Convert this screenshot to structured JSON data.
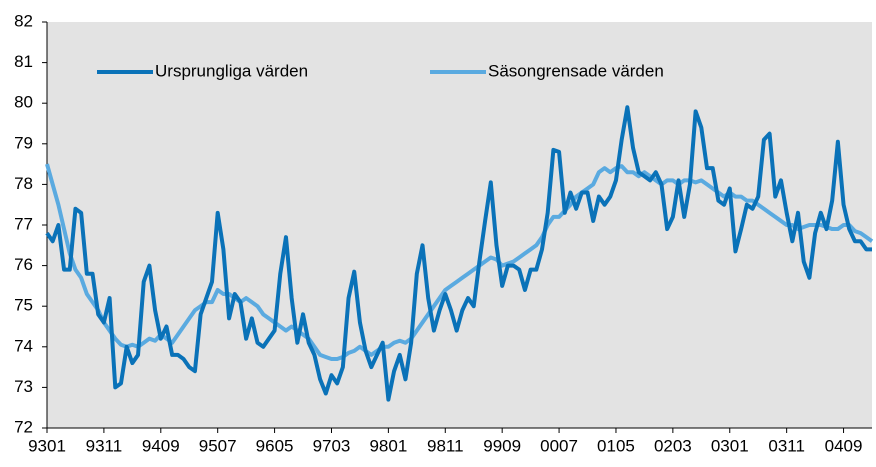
{
  "chart_data": {
    "type": "line",
    "categories": [
      "9301",
      null,
      null,
      null,
      null,
      null,
      null,
      null,
      null,
      null,
      "9311",
      null,
      null,
      null,
      null,
      null,
      null,
      null,
      null,
      null,
      "9409",
      null,
      null,
      null,
      null,
      null,
      null,
      null,
      null,
      null,
      "9507",
      null,
      null,
      null,
      null,
      null,
      null,
      null,
      null,
      null,
      "9605",
      null,
      null,
      null,
      null,
      null,
      null,
      null,
      null,
      null,
      "9703",
      null,
      null,
      null,
      null,
      null,
      null,
      null,
      null,
      null,
      "9801",
      null,
      null,
      null,
      null,
      null,
      null,
      null,
      null,
      null,
      "9811",
      null,
      null,
      null,
      null,
      null,
      null,
      null,
      null,
      null,
      "9909",
      null,
      null,
      null,
      null,
      null,
      null,
      null,
      null,
      null,
      "0007",
      null,
      null,
      null,
      null,
      null,
      null,
      null,
      null,
      null,
      "0105",
      null,
      null,
      null,
      null,
      null,
      null,
      null,
      null,
      null,
      "0203",
      null,
      null,
      null,
      null,
      null,
      null,
      null,
      null,
      null,
      "0301",
      null,
      null,
      null,
      null,
      null,
      null,
      null,
      null,
      null,
      "0311",
      null,
      null,
      null,
      null,
      null,
      null,
      null,
      null,
      null,
      "0409",
      null,
      null,
      null,
      null,
      null
    ],
    "series": [
      {
        "name": "Ursprungliga värden",
        "color": "#0a72b8",
        "values": [
          76.8,
          76.6,
          77.0,
          75.9,
          75.9,
          77.4,
          77.3,
          75.8,
          75.8,
          74.8,
          74.6,
          75.2,
          73.0,
          73.1,
          74.0,
          73.6,
          73.8,
          75.6,
          76.0,
          74.9,
          74.2,
          74.5,
          73.8,
          73.8,
          73.7,
          73.5,
          73.4,
          74.8,
          75.2,
          75.6,
          77.3,
          76.4,
          74.7,
          75.3,
          75.1,
          74.2,
          74.7,
          74.1,
          74.0,
          74.2,
          74.4,
          75.8,
          76.7,
          75.2,
          74.1,
          74.8,
          74.1,
          73.8,
          73.2,
          72.85,
          73.3,
          73.1,
          73.5,
          75.2,
          75.85,
          74.6,
          73.9,
          73.5,
          73.8,
          74.1,
          72.7,
          73.4,
          73.8,
          73.2,
          74.1,
          75.8,
          76.5,
          75.2,
          74.4,
          74.9,
          75.3,
          74.9,
          74.4,
          74.9,
          75.2,
          75.0,
          76.1,
          77.1,
          78.05,
          76.5,
          75.5,
          76.0,
          76.0,
          75.9,
          75.4,
          75.9,
          75.9,
          76.4,
          77.3,
          78.85,
          78.8,
          77.3,
          77.8,
          77.4,
          77.8,
          77.8,
          77.1,
          77.7,
          77.5,
          77.7,
          78.1,
          79.1,
          79.9,
          78.9,
          78.3,
          78.2,
          78.1,
          78.3,
          78.0,
          76.9,
          77.2,
          78.1,
          77.2,
          78.0,
          79.8,
          79.4,
          78.4,
          78.4,
          77.6,
          77.5,
          77.9,
          76.35,
          76.9,
          77.5,
          77.4,
          77.7,
          79.1,
          79.25,
          77.7,
          78.1,
          77.3,
          76.6,
          77.3,
          76.1,
          75.7,
          76.8,
          77.3,
          76.9,
          77.6,
          79.05,
          77.5,
          76.9,
          76.6,
          76.6,
          76.4,
          76.4
        ]
      },
      {
        "name": "Säsongrensade värden",
        "color": "#5aaae0",
        "values": [
          78.5,
          78.0,
          77.5,
          76.9,
          76.3,
          75.9,
          75.7,
          75.3,
          75.1,
          74.9,
          74.6,
          74.4,
          74.2,
          74.05,
          74.0,
          74.05,
          74.0,
          74.1,
          74.2,
          74.15,
          74.3,
          74.2,
          74.1,
          74.3,
          74.5,
          74.7,
          74.9,
          75.0,
          75.1,
          75.1,
          75.4,
          75.3,
          75.3,
          75.2,
          75.1,
          75.2,
          75.1,
          75.0,
          74.8,
          74.7,
          74.6,
          74.5,
          74.4,
          74.5,
          74.4,
          74.3,
          74.2,
          74.0,
          73.8,
          73.75,
          73.7,
          73.7,
          73.75,
          73.85,
          73.9,
          74.0,
          73.9,
          73.8,
          73.9,
          74.0,
          74.0,
          74.1,
          74.15,
          74.1,
          74.2,
          74.4,
          74.6,
          74.8,
          75.0,
          75.2,
          75.4,
          75.5,
          75.6,
          75.7,
          75.8,
          75.9,
          76.0,
          76.1,
          76.2,
          76.15,
          76.0,
          76.05,
          76.1,
          76.2,
          76.3,
          76.4,
          76.5,
          76.7,
          77.0,
          77.2,
          77.2,
          77.35,
          77.5,
          77.7,
          77.8,
          77.9,
          78.0,
          78.3,
          78.4,
          78.3,
          78.4,
          78.45,
          78.3,
          78.3,
          78.2,
          78.3,
          78.2,
          78.1,
          78.0,
          78.1,
          78.1,
          78.0,
          78.1,
          78.1,
          78.05,
          78.1,
          78.0,
          77.9,
          77.8,
          77.7,
          77.8,
          77.7,
          77.7,
          77.6,
          77.6,
          77.5,
          77.4,
          77.3,
          77.2,
          77.1,
          77.0,
          77.0,
          76.9,
          76.95,
          77.0,
          77.0,
          77.0,
          76.95,
          76.9,
          76.9,
          77.0,
          77.0,
          76.85,
          76.8,
          76.7,
          76.6
        ]
      }
    ],
    "ylim": [
      72,
      82
    ],
    "yticks": [
      72,
      73,
      74,
      75,
      76,
      77,
      78,
      79,
      80,
      81,
      82
    ],
    "grid": false,
    "legend": "top"
  }
}
